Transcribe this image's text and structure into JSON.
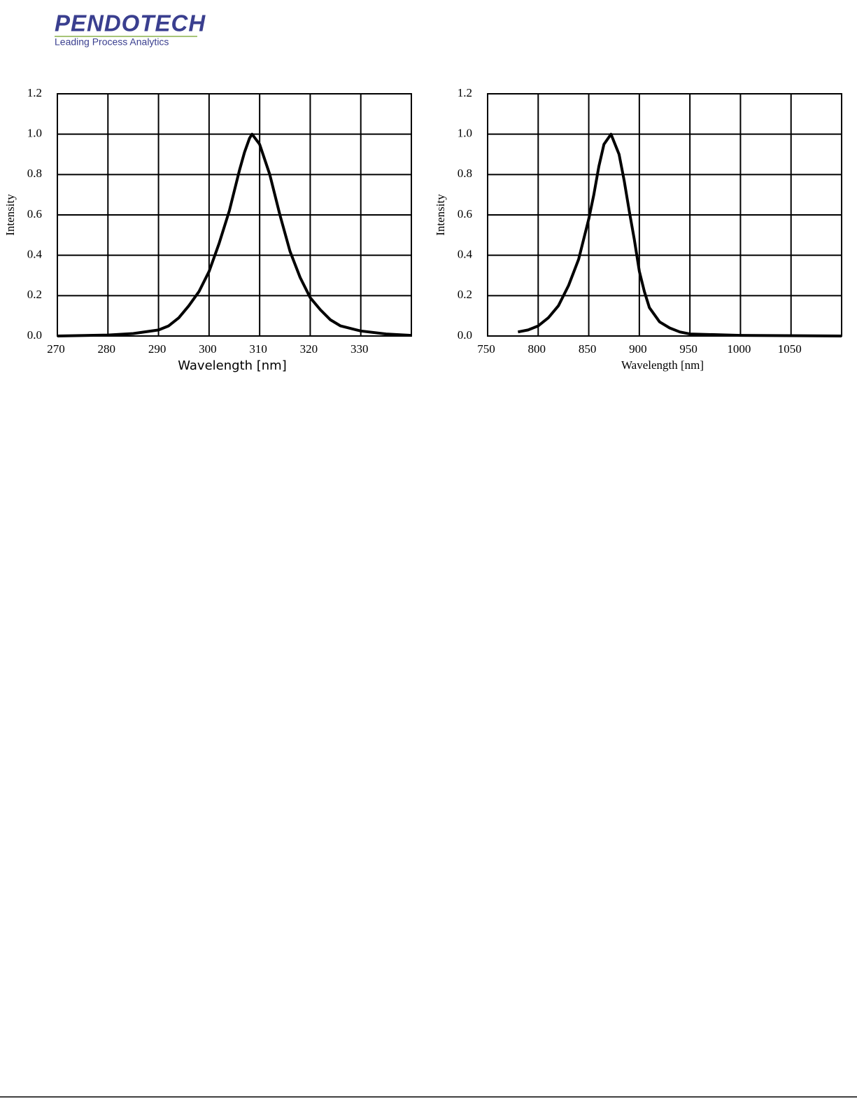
{
  "logo": {
    "name": "PENDOTECH",
    "tagline": "Leading Process Analytics"
  },
  "chart_data": [
    {
      "type": "line",
      "xlabel": "Wavelength [nm]",
      "ylabel": "Intensity",
      "color": "#000000",
      "grid": true,
      "x": [
        270,
        280,
        285,
        290,
        292,
        294,
        296,
        298,
        300,
        302,
        304,
        306,
        307,
        308,
        308.5,
        310,
        312,
        314,
        316,
        318,
        320,
        322,
        324,
        326,
        330,
        335,
        340
      ],
      "values": [
        0.0,
        0.005,
        0.012,
        0.03,
        0.05,
        0.09,
        0.15,
        0.22,
        0.32,
        0.46,
        0.62,
        0.82,
        0.91,
        0.98,
        1.0,
        0.95,
        0.8,
        0.6,
        0.42,
        0.29,
        0.19,
        0.13,
        0.08,
        0.05,
        0.025,
        0.01,
        0.003
      ],
      "xlim": [
        270,
        340
      ],
      "xticks": [
        270,
        280,
        290,
        300,
        310,
        320,
        330
      ],
      "ylim": [
        0,
        1.2
      ],
      "yticks": [
        {
          "value": 0,
          "label": "0.0"
        },
        0.2,
        0.4,
        0.6,
        0.8,
        {
          "value": 1,
          "label": "1.0"
        },
        1.2
      ]
    },
    {
      "type": "line",
      "xlabel": "Wavelength [nm]",
      "ylabel": "Intensity",
      "color": "#000000",
      "grid": true,
      "x": [
        780,
        790,
        800,
        810,
        820,
        830,
        840,
        850,
        855,
        860,
        865,
        872,
        880,
        885,
        890,
        895,
        900,
        905,
        910,
        920,
        930,
        940,
        950,
        1000,
        1100
      ],
      "values": [
        0.02,
        0.03,
        0.05,
        0.09,
        0.15,
        0.25,
        0.38,
        0.58,
        0.7,
        0.84,
        0.95,
        1.0,
        0.9,
        0.77,
        0.62,
        0.48,
        0.32,
        0.22,
        0.14,
        0.07,
        0.04,
        0.02,
        0.01,
        0.003,
        0.0
      ],
      "xlim": [
        750,
        1100
      ],
      "xticks": [
        750,
        800,
        850,
        900,
        950,
        1000,
        1050
      ],
      "ylim": [
        0,
        1.2
      ],
      "yticks": [
        {
          "value": 0,
          "label": "0.0"
        },
        0.2,
        0.4,
        0.6,
        0.8,
        {
          "value": 1,
          "label": "1.0"
        },
        1.2
      ]
    }
  ]
}
